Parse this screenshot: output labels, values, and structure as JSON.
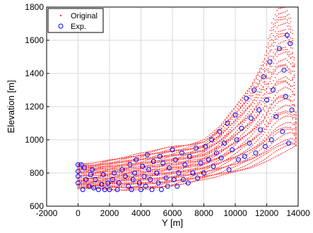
{
  "chart_data": {
    "type": "scatter",
    "title": "",
    "xlabel": "Y [m]",
    "ylabel": "Elevation [m]",
    "xlim": [
      -2000,
      14000
    ],
    "ylim": [
      600,
      1800
    ],
    "xticks": [
      -2000,
      0,
      2000,
      4000,
      6000,
      8000,
      10000,
      12000,
      14000
    ],
    "yticks": [
      600,
      800,
      1000,
      1200,
      1400,
      1600,
      1800
    ],
    "xtick_labels": [
      "-2000",
      "0",
      "2000",
      "4000",
      "6000",
      "8000",
      "10000",
      "12000",
      "14000"
    ],
    "ytick_labels": [
      "600",
      "800",
      "1000",
      "1200",
      "1400",
      "1600",
      "1800"
    ],
    "grid": true,
    "legend_position": "top-left",
    "series": [
      {
        "name": "Original",
        "marker": "dot",
        "color": "#ff0000",
        "note": "dense point cloud; profile lines sampled between upper and lower envelopes",
        "upper_envelope": [
          [
            0,
            855
          ],
          [
            1000,
            860
          ],
          [
            2000,
            880
          ],
          [
            3000,
            900
          ],
          [
            4000,
            920
          ],
          [
            5000,
            940
          ],
          [
            6000,
            960
          ],
          [
            7000,
            975
          ],
          [
            8000,
            1000
          ],
          [
            9000,
            1080
          ],
          [
            10000,
            1200
          ],
          [
            11000,
            1330
          ],
          [
            11800,
            1480
          ],
          [
            12300,
            1700
          ],
          [
            12700,
            1790
          ],
          [
            13200,
            1800
          ],
          [
            13600,
            1720
          ],
          [
            13800,
            1420
          ],
          [
            13900,
            1000
          ]
        ],
        "lower_envelope": [
          [
            0,
            705
          ],
          [
            1000,
            705
          ],
          [
            2000,
            700
          ],
          [
            3000,
            695
          ],
          [
            4000,
            700
          ],
          [
            5000,
            705
          ],
          [
            6000,
            720
          ],
          [
            7000,
            740
          ],
          [
            8000,
            760
          ],
          [
            9000,
            780
          ],
          [
            10000,
            800
          ],
          [
            11000,
            830
          ],
          [
            12000,
            870
          ],
          [
            13000,
            920
          ],
          [
            13900,
            960
          ]
        ]
      },
      {
        "name": "Exp.",
        "marker": "circle",
        "color": "#0000ff",
        "points": [
          [
            0,
            850
          ],
          [
            0,
            810
          ],
          [
            0,
            780
          ],
          [
            0,
            740
          ],
          [
            200,
            850
          ],
          [
            300,
            700
          ],
          [
            400,
            830
          ],
          [
            500,
            760
          ],
          [
            700,
            720
          ],
          [
            800,
            790
          ],
          [
            900,
            820
          ],
          [
            1000,
            710
          ],
          [
            1100,
            760
          ],
          [
            1300,
            700
          ],
          [
            1500,
            730
          ],
          [
            1600,
            790
          ],
          [
            1700,
            700
          ],
          [
            1900,
            740
          ],
          [
            2000,
            700
          ],
          [
            2200,
            760
          ],
          [
            2300,
            800
          ],
          [
            2500,
            700
          ],
          [
            2600,
            740
          ],
          [
            2800,
            820
          ],
          [
            3000,
            780
          ],
          [
            3200,
            720
          ],
          [
            3300,
            850
          ],
          [
            3400,
            700
          ],
          [
            3500,
            760
          ],
          [
            3600,
            800
          ],
          [
            3700,
            880
          ],
          [
            3900,
            740
          ],
          [
            4000,
            700
          ],
          [
            4100,
            840
          ],
          [
            4200,
            780
          ],
          [
            4300,
            720
          ],
          [
            4400,
            910
          ],
          [
            4500,
            820
          ],
          [
            4600,
            760
          ],
          [
            4700,
            700
          ],
          [
            4800,
            870
          ],
          [
            5000,
            800
          ],
          [
            5100,
            740
          ],
          [
            5200,
            900
          ],
          [
            5300,
            700
          ],
          [
            5400,
            860
          ],
          [
            5600,
            770
          ],
          [
            5700,
            720
          ],
          [
            5800,
            830
          ],
          [
            6000,
            940
          ],
          [
            6100,
            760
          ],
          [
            6200,
            880
          ],
          [
            6300,
            720
          ],
          [
            6400,
            800
          ],
          [
            6600,
            920
          ],
          [
            6700,
            760
          ],
          [
            6800,
            850
          ],
          [
            7000,
            740
          ],
          [
            7100,
            900
          ],
          [
            7300,
            800
          ],
          [
            7500,
            950
          ],
          [
            7600,
            770
          ],
          [
            7800,
            860
          ],
          [
            8000,
            800
          ],
          [
            8100,
            960
          ],
          [
            8300,
            880
          ],
          [
            8500,
            1000
          ],
          [
            8600,
            840
          ],
          [
            8800,
            920
          ],
          [
            9000,
            1050
          ],
          [
            9100,
            890
          ],
          [
            9300,
            980
          ],
          [
            9500,
            1100
          ],
          [
            9600,
            820
          ],
          [
            9800,
            940
          ],
          [
            10000,
            1150
          ],
          [
            10100,
            1000
          ],
          [
            10200,
            880
          ],
          [
            10400,
            1070
          ],
          [
            10600,
            900
          ],
          [
            10700,
            1250
          ],
          [
            10900,
            980
          ],
          [
            11000,
            1130
          ],
          [
            11200,
            1300
          ],
          [
            11300,
            920
          ],
          [
            11500,
            1180
          ],
          [
            11600,
            1060
          ],
          [
            11800,
            1380
          ],
          [
            11900,
            960
          ],
          [
            12000,
            1240
          ],
          [
            12200,
            1470
          ],
          [
            12300,
            1000
          ],
          [
            12400,
            1300
          ],
          [
            12600,
            1140
          ],
          [
            12800,
            1550
          ],
          [
            13000,
            1050
          ],
          [
            13100,
            1420
          ],
          [
            13200,
            1260
          ],
          [
            13300,
            1630
          ],
          [
            13400,
            980
          ],
          [
            13500,
            1580
          ],
          [
            13600,
            1180
          ]
        ]
      }
    ]
  }
}
